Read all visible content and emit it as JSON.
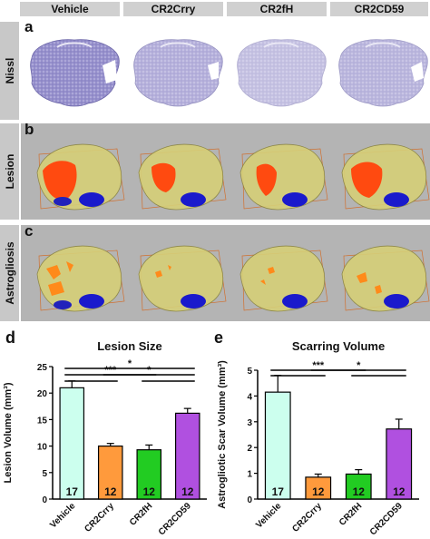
{
  "columns": [
    "Vehicle",
    "CR2Crry",
    "CR2fH",
    "CR2CD59"
  ],
  "rows": [
    {
      "letter": "a",
      "label": "Nissl"
    },
    {
      "letter": "b",
      "label": "Lesion"
    },
    {
      "letter": "c",
      "label": "Astrogliosis"
    }
  ],
  "colors": {
    "tab_gray": "#c8c8c8",
    "panel_gray": "#b4b4b4",
    "nissl": "#8c86c4",
    "lesion": "#ff4a10",
    "astro": "#ff8a1a",
    "brain_shell": "#e0d98c",
    "ventricle_blue": "#1a1acc"
  },
  "chart_data": [
    {
      "panel": "d",
      "type": "bar",
      "title": "Lesion Size",
      "ylabel": "Lesion Volume (mm³)",
      "categories": [
        "Vehicle",
        "CR2Crry",
        "CR2fH",
        "CR2CD59"
      ],
      "values": [
        21.0,
        10.0,
        9.3,
        16.2
      ],
      "errors": [
        1.3,
        0.5,
        0.9,
        0.9
      ],
      "n": [
        "17",
        "12",
        "12",
        "12"
      ],
      "bar_colors": [
        "#ccffee",
        "#ff9a3c",
        "#22cc22",
        "#b050e0"
      ],
      "ylim": [
        0,
        25
      ],
      "yticks": [
        "0",
        "5",
        "10",
        "15",
        "20",
        "25"
      ],
      "significance": [
        {
          "from": 0,
          "to": 3,
          "label": "*",
          "level": 2
        },
        {
          "from": 0,
          "to": 2,
          "label": "***",
          "level": 1
        },
        {
          "from": 0,
          "to": 1,
          "label": "",
          "level": 0
        },
        {
          "from": 1,
          "to": 3,
          "label": "*",
          "level": 1
        },
        {
          "from": 2,
          "to": 3,
          "label": "",
          "level": 0
        }
      ]
    },
    {
      "panel": "e",
      "type": "bar",
      "title": "Scarring Volume",
      "ylabel": "Astrogliotic Scar Volume (mm³)",
      "categories": [
        "Vehicle",
        "CR2Crry",
        "CR2fH",
        "CR2CD59"
      ],
      "values": [
        4.15,
        0.85,
        0.97,
        2.72
      ],
      "errors": [
        0.65,
        0.12,
        0.17,
        0.38
      ],
      "n": [
        "17",
        "12",
        "12",
        "12"
      ],
      "bar_colors": [
        "#ccffee",
        "#ff9a3c",
        "#22cc22",
        "#b050e0"
      ],
      "ylim": [
        0,
        5
      ],
      "yticks": [
        "0",
        "1",
        "2",
        "3",
        "4",
        "5"
      ],
      "significance": [
        {
          "from": 0,
          "to": 2,
          "label": "***",
          "level": 1
        },
        {
          "from": 0,
          "to": 1,
          "label": "",
          "level": 0
        },
        {
          "from": 1,
          "to": 3,
          "label": "*",
          "level": 1
        },
        {
          "from": 2,
          "to": 3,
          "label": "",
          "level": 0
        }
      ]
    }
  ],
  "chart_letters": [
    "d",
    "e"
  ]
}
